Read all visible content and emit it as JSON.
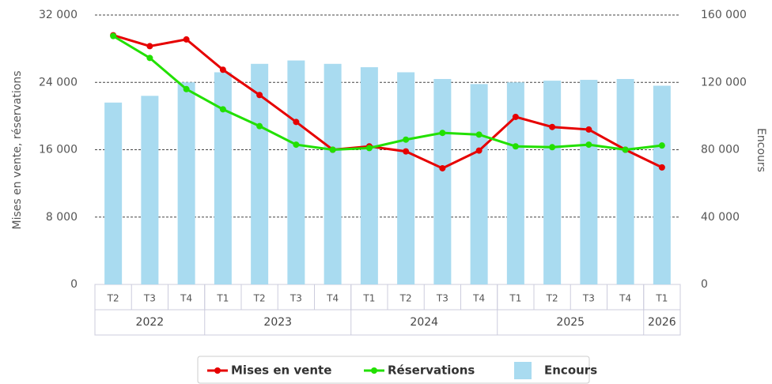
{
  "chart_data": {
    "type": "bar",
    "category_groups": [
      {
        "year": "2022",
        "quarters": [
          "T2",
          "T3",
          "T4"
        ]
      },
      {
        "year": "2023",
        "quarters": [
          "T1",
          "T2",
          "T3",
          "T4"
        ]
      },
      {
        "year": "2024",
        "quarters": [
          "T1",
          "T2",
          "T3",
          "T4"
        ]
      },
      {
        "year": "2025",
        "quarters": [
          "T1",
          "T2",
          "T3",
          "T4"
        ]
      },
      {
        "year": "2026",
        "quarters": [
          "T1"
        ]
      }
    ],
    "y_label": "Mises en vente, réservations",
    "y2_label": "Encours",
    "ylim": [
      0,
      32000
    ],
    "yticks": [
      0,
      {
        "value": 8000,
        "label": "8 000"
      },
      {
        "value": 16000,
        "label": "16 000"
      },
      {
        "value": 24000,
        "label": "24 000"
      },
      {
        "value": 32000,
        "label": "32 000"
      }
    ],
    "y2lim": [
      0,
      160000
    ],
    "y2ticks": [
      0,
      {
        "value": 40000,
        "label": "40 000"
      },
      {
        "value": 80000,
        "label": "80 000"
      },
      {
        "value": 120000,
        "label": "120 000"
      },
      {
        "value": 160000,
        "label": "160 000"
      }
    ],
    "grid": true,
    "legend": "bottom",
    "series": [
      {
        "name": "Encours",
        "type": "bar",
        "axis": "y2",
        "color": "#a9dbf0",
        "values": [
          108000,
          112000,
          120000,
          126000,
          131000,
          133000,
          131000,
          129000,
          126000,
          122000,
          119000,
          120000,
          121000,
          121500,
          122000,
          118000
        ]
      },
      {
        "name": "Mises en vente",
        "type": "line",
        "color": "#e60000",
        "values": [
          29600,
          28300,
          29100,
          25500,
          22500,
          19300,
          16000,
          16400,
          15800,
          13800,
          15900,
          19900,
          18700,
          18400,
          16000,
          13900
        ]
      },
      {
        "name": "Réservations",
        "type": "line",
        "color": "#22e000",
        "values": [
          29500,
          26900,
          23200,
          20800,
          18800,
          16600,
          16000,
          16200,
          17200,
          18000,
          17800,
          16400,
          16300,
          16600,
          16000,
          16500
        ]
      }
    ]
  }
}
